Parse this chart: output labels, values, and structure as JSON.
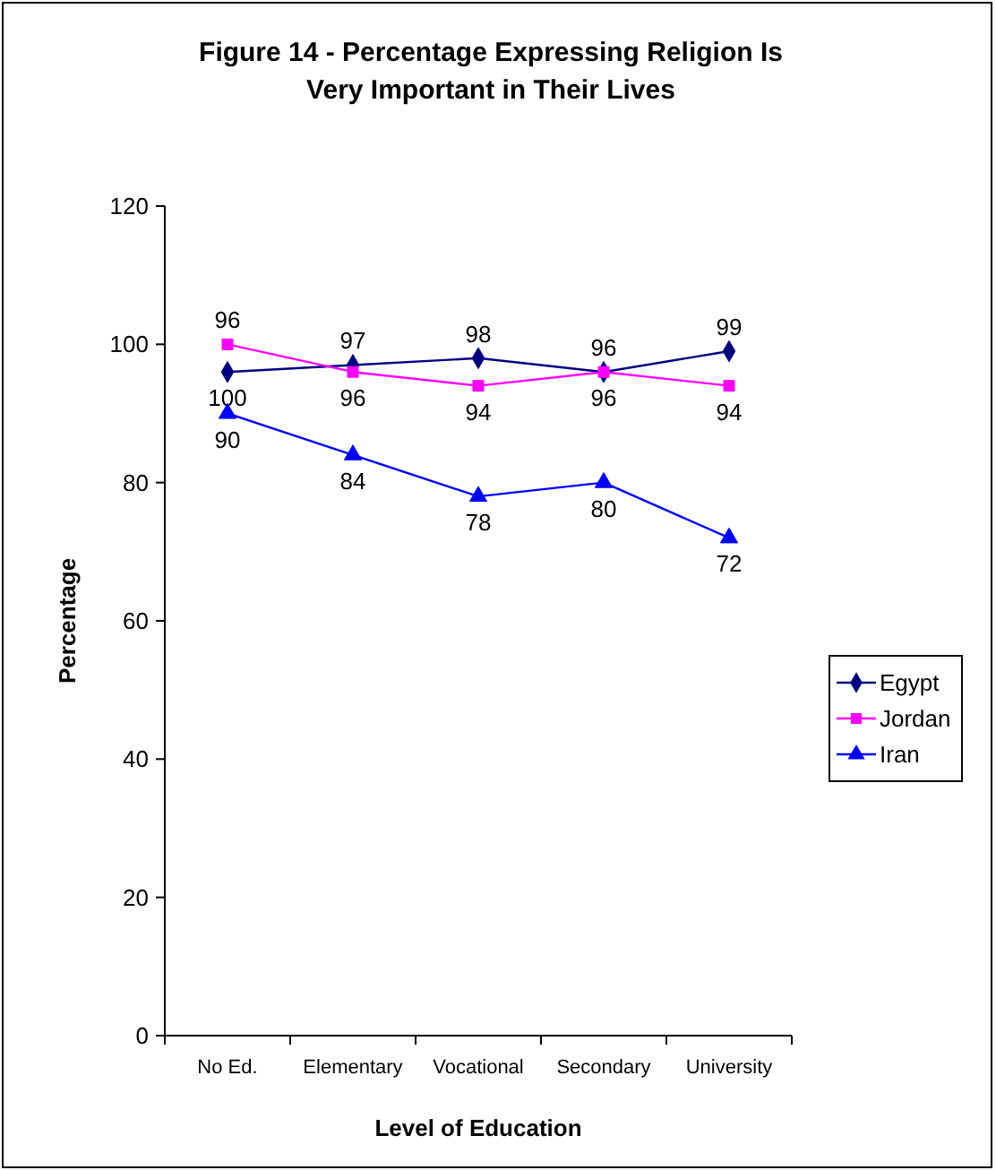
{
  "chart_data": {
    "type": "line",
    "title": "Figure 14 - Percentage Expressing Religion Is Very Important in Their Lives",
    "xlabel": "Level of Education",
    "ylabel": "Percentage",
    "categories": [
      "No Ed.",
      "Elementary",
      "Vocational",
      "Secondary",
      "University"
    ],
    "series": [
      {
        "name": "Egypt",
        "color": "#000080",
        "marker": "diamond",
        "values": [
          96,
          97,
          98,
          96,
          99
        ]
      },
      {
        "name": "Jordan",
        "color": "#ff00ff",
        "marker": "square",
        "values": [
          100,
          96,
          94,
          96,
          94
        ]
      },
      {
        "name": "Iran",
        "color": "#0000ff",
        "marker": "triangle",
        "values": [
          90,
          84,
          78,
          80,
          72
        ]
      }
    ],
    "ylim": [
      0,
      120
    ],
    "yticks": [
      0,
      20,
      40,
      60,
      80,
      100,
      120
    ],
    "grid": false,
    "legend": "right",
    "data_labels": true,
    "line_style": "solid"
  }
}
